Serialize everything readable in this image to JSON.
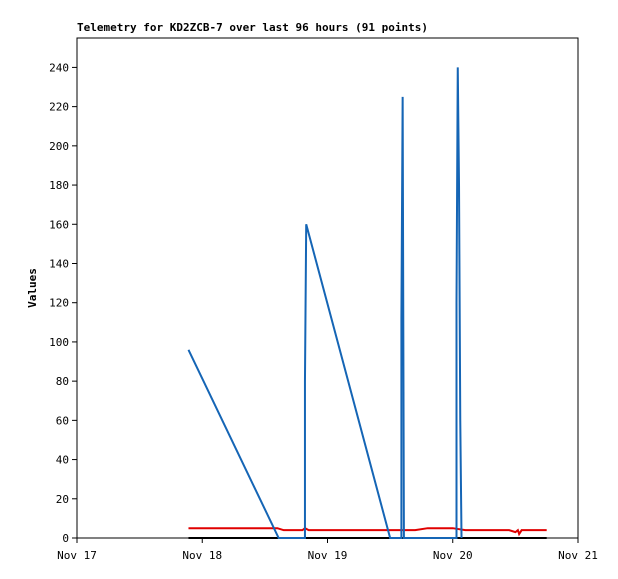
{
  "chart_data": {
    "type": "line",
    "title": "Telemetry for KD2ZCB-7 over last 96 hours (91 points)",
    "y_label": "Values",
    "xlim": [
      17,
      21
    ],
    "xticks": [
      {
        "value": 17,
        "label": "Nov 17"
      },
      {
        "value": 18,
        "label": "Nov 18"
      },
      {
        "value": 19,
        "label": "Nov 19"
      },
      {
        "value": 20,
        "label": "Nov 20"
      },
      {
        "value": 21,
        "label": "Nov 21"
      }
    ],
    "ylim": [
      0,
      255
    ],
    "yticks": [
      0,
      20,
      40,
      60,
      80,
      100,
      120,
      140,
      160,
      180,
      200,
      220,
      240
    ],
    "grid": false,
    "series": [
      {
        "color": "#000000",
        "x": [
          17.89,
          20.75
        ],
        "values": [
          0,
          0
        ]
      },
      {
        "color": "#e00000",
        "x": [
          17.89,
          18.6,
          18.65,
          18.8,
          18.82,
          18.85,
          19.7,
          19.8,
          20.0,
          20.1,
          20.45,
          20.5,
          20.52,
          20.53,
          20.55,
          20.75
        ],
        "values": [
          5,
          5,
          4,
          4,
          5,
          4,
          4,
          5,
          5,
          4,
          4,
          3,
          4,
          2,
          4,
          4
        ]
      },
      {
        "color": "#1565b5",
        "x": [
          17.89,
          18.61,
          18.82,
          18.82,
          18.83,
          19.5,
          19.59,
          19.59,
          19.6,
          19.61,
          20.03,
          20.03,
          20.04,
          20.05,
          20.06,
          20.07
        ],
        "values": [
          96,
          0,
          0,
          80,
          160,
          0,
          0,
          112,
          225,
          0,
          0,
          120,
          240,
          180,
          60,
          0
        ]
      }
    ]
  }
}
